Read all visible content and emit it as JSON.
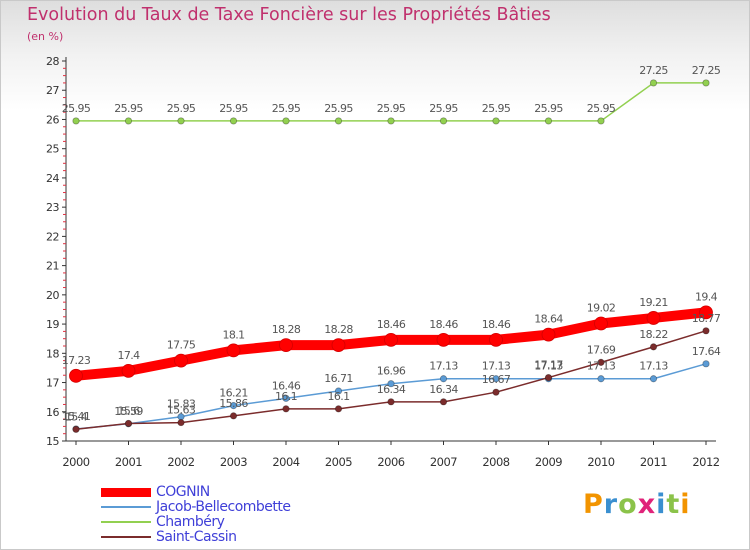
{
  "header": {
    "title": "Evolution du Taux de Taxe Foncière sur les Propriétés Bâties",
    "subtitle": "(en %)"
  },
  "brand": {
    "letters": [
      "P",
      "r",
      "o",
      "x",
      "i",
      "t",
      "i"
    ],
    "colors": [
      "#f29400",
      "#3a8fd0",
      "#8bc34a",
      "#e0237a",
      "#3a8fd0",
      "#8bc34a",
      "#f29400"
    ]
  },
  "chart_data": {
    "type": "line",
    "title": "Evolution du Taux de Taxe Foncière sur les Propriétés Bâties",
    "ylabel": "(en %)",
    "xlabel": "",
    "x": [
      "2000",
      "2001",
      "2002",
      "2003",
      "2004",
      "2005",
      "2006",
      "2007",
      "2008",
      "2009",
      "2010",
      "2011",
      "2012"
    ],
    "ylim": [
      15,
      28
    ],
    "yticks": [
      15,
      16,
      17,
      18,
      19,
      20,
      21,
      22,
      23,
      24,
      25,
      26,
      27,
      28
    ],
    "grid": false,
    "legend_position": "bottom-left",
    "series": [
      {
        "name": "COGNIN",
        "color": "#ff0000",
        "emphasis": true,
        "values": [
          17.23,
          17.4,
          17.75,
          18.1,
          18.28,
          18.28,
          18.46,
          18.46,
          18.46,
          18.64,
          19.02,
          19.21,
          19.4
        ],
        "labels": [
          "17.23",
          "17.4",
          "17.75",
          "18.1",
          "18.28",
          "18.28",
          "18.46",
          "18.46",
          "18.46",
          "18.64",
          "19.02",
          "19.21",
          "19.4"
        ]
      },
      {
        "name": "Jacob-Bellecombette",
        "color": "#5b9bd5",
        "emphasis": false,
        "values": [
          15.41,
          15.59,
          15.83,
          16.21,
          16.46,
          16.71,
          16.96,
          17.13,
          17.13,
          17.13,
          17.13,
          17.13,
          17.64
        ],
        "labels": [
          "15.41",
          "15.59",
          "15.83",
          "16.21",
          "16.46",
          "16.71",
          "16.96",
          "17.13",
          "17.13",
          "17.13",
          "17.13",
          "17.13",
          "17.64"
        ]
      },
      {
        "name": "Chambéry",
        "color": "#92d050",
        "emphasis": false,
        "values": [
          25.95,
          25.95,
          25.95,
          25.95,
          25.95,
          25.95,
          25.95,
          25.95,
          25.95,
          25.95,
          25.95,
          27.25,
          27.25
        ],
        "labels": [
          "25.95",
          "25.95",
          "25.95",
          "25.95",
          "25.95",
          "25.95",
          "25.95",
          "25.95",
          "25.95",
          "25.95",
          "25.95",
          "27.25",
          "27.25"
        ]
      },
      {
        "name": "Saint-Cassin",
        "color": "#7b2c2c",
        "emphasis": false,
        "values": [
          15.4,
          15.6,
          15.63,
          15.86,
          16.1,
          16.1,
          16.34,
          16.34,
          16.67,
          17.17,
          17.69,
          18.22,
          18.77
        ],
        "labels": [
          "15.4",
          "15.6",
          "15.63",
          "15.86",
          "16.1",
          "16.1",
          "16.34",
          "16.34",
          "16.67",
          "17.17",
          "17.69",
          "18.22",
          "18.77"
        ]
      }
    ]
  }
}
